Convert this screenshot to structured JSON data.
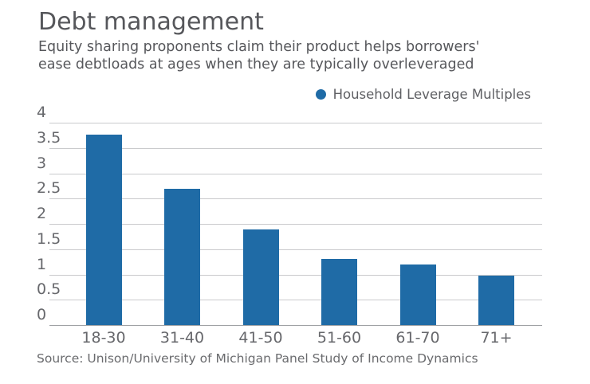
{
  "header": {
    "title": "Debt management",
    "subtitle_line1": "Equity sharing proponents claim their product helps borrowers'",
    "subtitle_line2": "ease debtloads at ages when they are typically overleveraged"
  },
  "legend": {
    "label": "Household Leverage Multiples"
  },
  "footer": {
    "source": "Source: Unison/University of Michigan Panel Study of Income Dynamics"
  },
  "colors": {
    "bar": "#1f6ba6",
    "text_dark": "#56575b",
    "text_gray": "#67686c",
    "gridline": "#c9cacc",
    "axis_line": "#9fa1a4"
  },
  "chart_data": {
    "type": "bar",
    "title": "Debt management",
    "subtitle": "Equity sharing proponents claim their product helps borrowers' ease debtloads at ages when they are typically overleveraged",
    "legend_entries": [
      "Household Leverage Multiples"
    ],
    "legend_position": "top-right",
    "categories": [
      "18-30",
      "31-40",
      "41-50",
      "51-60",
      "61-70",
      "71+"
    ],
    "values": [
      3.77,
      2.7,
      1.89,
      1.3,
      1.19,
      0.98
    ],
    "xlabel": "",
    "ylabel": "",
    "ylim": [
      0,
      4
    ],
    "yticks": [
      0,
      0.5,
      1,
      1.5,
      2,
      2.5,
      3,
      3.5,
      4
    ],
    "ytick_labels": [
      "0",
      "0.5",
      "1",
      "1.5",
      "2",
      "2.5",
      "3",
      "3.5",
      "4"
    ],
    "grid": "horizontal gridlines, tick labels above lines",
    "source": "Source: Unison/University of Michigan Panel Study of Income Dynamics"
  }
}
